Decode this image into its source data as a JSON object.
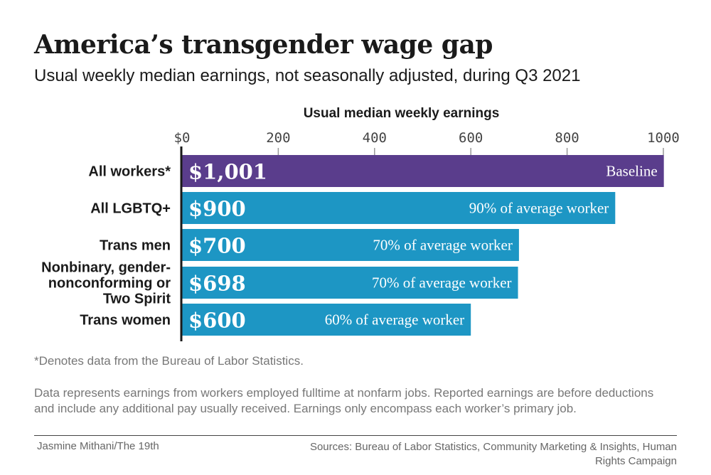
{
  "title": "America’s transgender wage gap",
  "subtitle": "Usual weekly median earnings, not seasonally adjusted, during Q3 2021",
  "chart_data": {
    "type": "bar",
    "orientation": "horizontal",
    "axis_title": "Usual median weekly earnings",
    "x_ticks": [
      "$0",
      "200",
      "400",
      "600",
      "800",
      "1000"
    ],
    "x_tick_values": [
      0,
      200,
      400,
      600,
      800,
      1000
    ],
    "xlim": [
      0,
      1000
    ],
    "categories": [
      "All workers*",
      "All LGBTQ+",
      "Trans men",
      "Nonbinary, gender-nonconforming or Two Spirit",
      "Trans women"
    ],
    "category_lines": [
      [
        "All workers*"
      ],
      [
        "All LGBTQ+"
      ],
      [
        "Trans men"
      ],
      [
        "Nonbinary, gender-",
        "nonconforming or",
        "Two Spirit"
      ],
      [
        "Trans women"
      ]
    ],
    "values": [
      1001,
      900,
      700,
      698,
      600
    ],
    "value_labels": [
      "$1,001",
      "$900",
      "$700",
      "$698",
      "$600"
    ],
    "annotations": [
      "Baseline",
      "90% of average worker",
      "70% of average worker",
      "70% of average worker",
      "60% of average worker"
    ],
    "colors": [
      "#5a3d8c",
      "#1d96c4",
      "#1d96c4",
      "#1d96c4",
      "#1d96c4"
    ]
  },
  "footnote": "*Denotes data from the Bureau of Labor Statistics.",
  "note": "Data represents earnings from workers employed fulltime at nonfarm jobs. Reported earnings are before deductions and include any additional pay usually received. Earnings only encompass each worker’s primary job.",
  "credit": "Jasmine Mithani/The 19th",
  "sources": "Sources: Bureau of Labor Statistics, Community Marketing & Insights, Human Rights Campaign"
}
